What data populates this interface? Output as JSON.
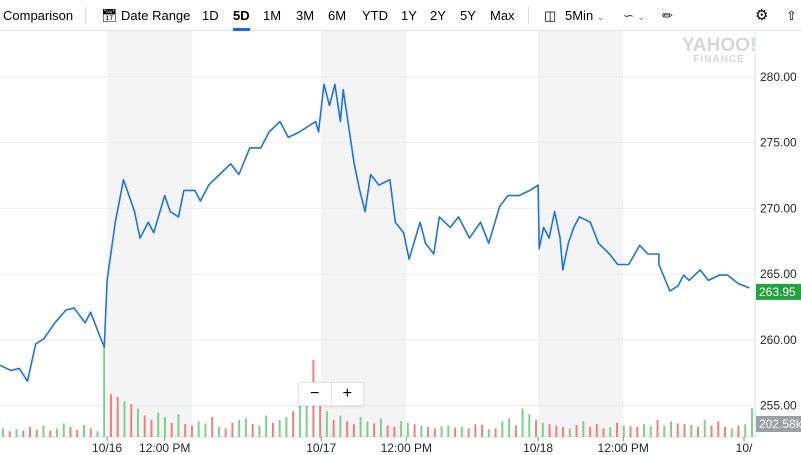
{
  "toolbar": {
    "comparison": "Comparison",
    "date_range": "Date Range",
    "ranges": [
      "1D",
      "5D",
      "1M",
      "3M",
      "6M",
      "YTD",
      "1Y",
      "2Y",
      "5Y",
      "Max"
    ],
    "active_range": "5D",
    "interval": "5Min"
  },
  "logo": {
    "line1": "YAHOO!",
    "line2": "FINANCE"
  },
  "zoom_controls": {
    "minus": "−",
    "plus": "+"
  },
  "colors": {
    "line": "#1a73e8",
    "up": "#7fcf8f",
    "down": "#f08080",
    "price_badge": "#21a33c",
    "volume_badge": "#9aa0a8"
  },
  "chart_data": {
    "type": "line",
    "y_axis": {
      "ticks": [
        "280.00",
        "275.00",
        "270.00",
        "265.00",
        "260.00",
        "255.00"
      ],
      "tick_values": [
        280,
        275,
        270,
        265,
        260,
        255
      ],
      "range": [
        252.6,
        283.5
      ]
    },
    "x_axis": {
      "ticks": [
        "10/16",
        "12:00 PM",
        "10/17",
        "12:00 PM",
        "10/18",
        "12:00 PM",
        "10/"
      ],
      "tick_positions": [
        39,
        60,
        117,
        148,
        196,
        227,
        271
      ],
      "range": [
        0,
        275
      ]
    },
    "shaded_sessions": [
      [
        39,
        70
      ],
      [
        117,
        148
      ],
      [
        196,
        227
      ]
    ],
    "current_price": "263.95",
    "current_volume": "202.58k",
    "series": [
      {
        "name": "price",
        "x": [
          0,
          4,
          7,
          10,
          13,
          16,
          20,
          24,
          27,
          31,
          33,
          36,
          38,
          39,
          42,
          45,
          49,
          51,
          54,
          56,
          60,
          62,
          65,
          67,
          71,
          73,
          76,
          80,
          84,
          87,
          91,
          95,
          98,
          102,
          105,
          109,
          115,
          116,
          118,
          120,
          122,
          124,
          125,
          127,
          129,
          131,
          133,
          135,
          138,
          142,
          144,
          147,
          149,
          153,
          155,
          158,
          160,
          164,
          167,
          171,
          175,
          178,
          182,
          185,
          189,
          193,
          196,
          196.4,
          198,
          200,
          202,
          204,
          205,
          207,
          209,
          211,
          215,
          218,
          222,
          225,
          229,
          233,
          236,
          240,
          240,
          244,
          247,
          249,
          251,
          255,
          258,
          262,
          265,
          269,
          273
        ],
        "y": [
          258.06,
          257.66,
          257.82,
          256.85,
          259.68,
          260.08,
          261.29,
          262.26,
          262.42,
          261.29,
          262.1,
          260.48,
          259.44,
          264.52,
          268.95,
          272.18,
          269.76,
          267.74,
          268.95,
          268.15,
          270.97,
          269.76,
          269.35,
          271.37,
          271.37,
          270.56,
          271.77,
          272.58,
          273.39,
          272.58,
          274.6,
          274.6,
          275.81,
          276.61,
          275.4,
          275.81,
          276.61,
          275.81,
          279.44,
          277.82,
          279.44,
          276.61,
          279.03,
          276.21,
          273.39,
          271.37,
          269.76,
          272.58,
          271.77,
          272.18,
          268.95,
          268.15,
          266.13,
          268.95,
          267.34,
          266.53,
          269.35,
          268.55,
          269.35,
          267.74,
          268.95,
          267.34,
          270.16,
          270.97,
          270.97,
          271.37,
          271.77,
          266.94,
          268.55,
          267.74,
          269.76,
          267.74,
          265.32,
          267.34,
          268.55,
          269.35,
          268.95,
          267.34,
          266.53,
          265.73,
          265.73,
          267.18,
          266.53,
          266.53,
          265.73,
          263.71,
          264.11,
          264.92,
          264.52,
          265.32,
          264.52,
          264.92,
          264.92,
          264.27,
          263.95
        ]
      }
    ],
    "volume_k": [
      60,
      40,
      55,
      45,
      70,
      50,
      80,
      45,
      60,
      95,
      70,
      50,
      85,
      60,
      40,
      640,
      300,
      280,
      250,
      230,
      200,
      150,
      120,
      170,
      140,
      100,
      160,
      90,
      80,
      110,
      95,
      140,
      70,
      60,
      100,
      120,
      130,
      90,
      80,
      150,
      100,
      120,
      140,
      180,
      220,
      300,
      540,
      330,
      180,
      120,
      150,
      110,
      90,
      140,
      110,
      95,
      130,
      80,
      70,
      110,
      100,
      90,
      80,
      70,
      60,
      75,
      80,
      65,
      70,
      60,
      90,
      85,
      55,
      60,
      110,
      130,
      80,
      200,
      160,
      120,
      100,
      90,
      80,
      70,
      60,
      85,
      110,
      70,
      90,
      60,
      70,
      100,
      80,
      75,
      70,
      90,
      75,
      120,
      80,
      110,
      95,
      90,
      85,
      70,
      120,
      80,
      110,
      70,
      60,
      80,
      90,
      200
    ]
  }
}
